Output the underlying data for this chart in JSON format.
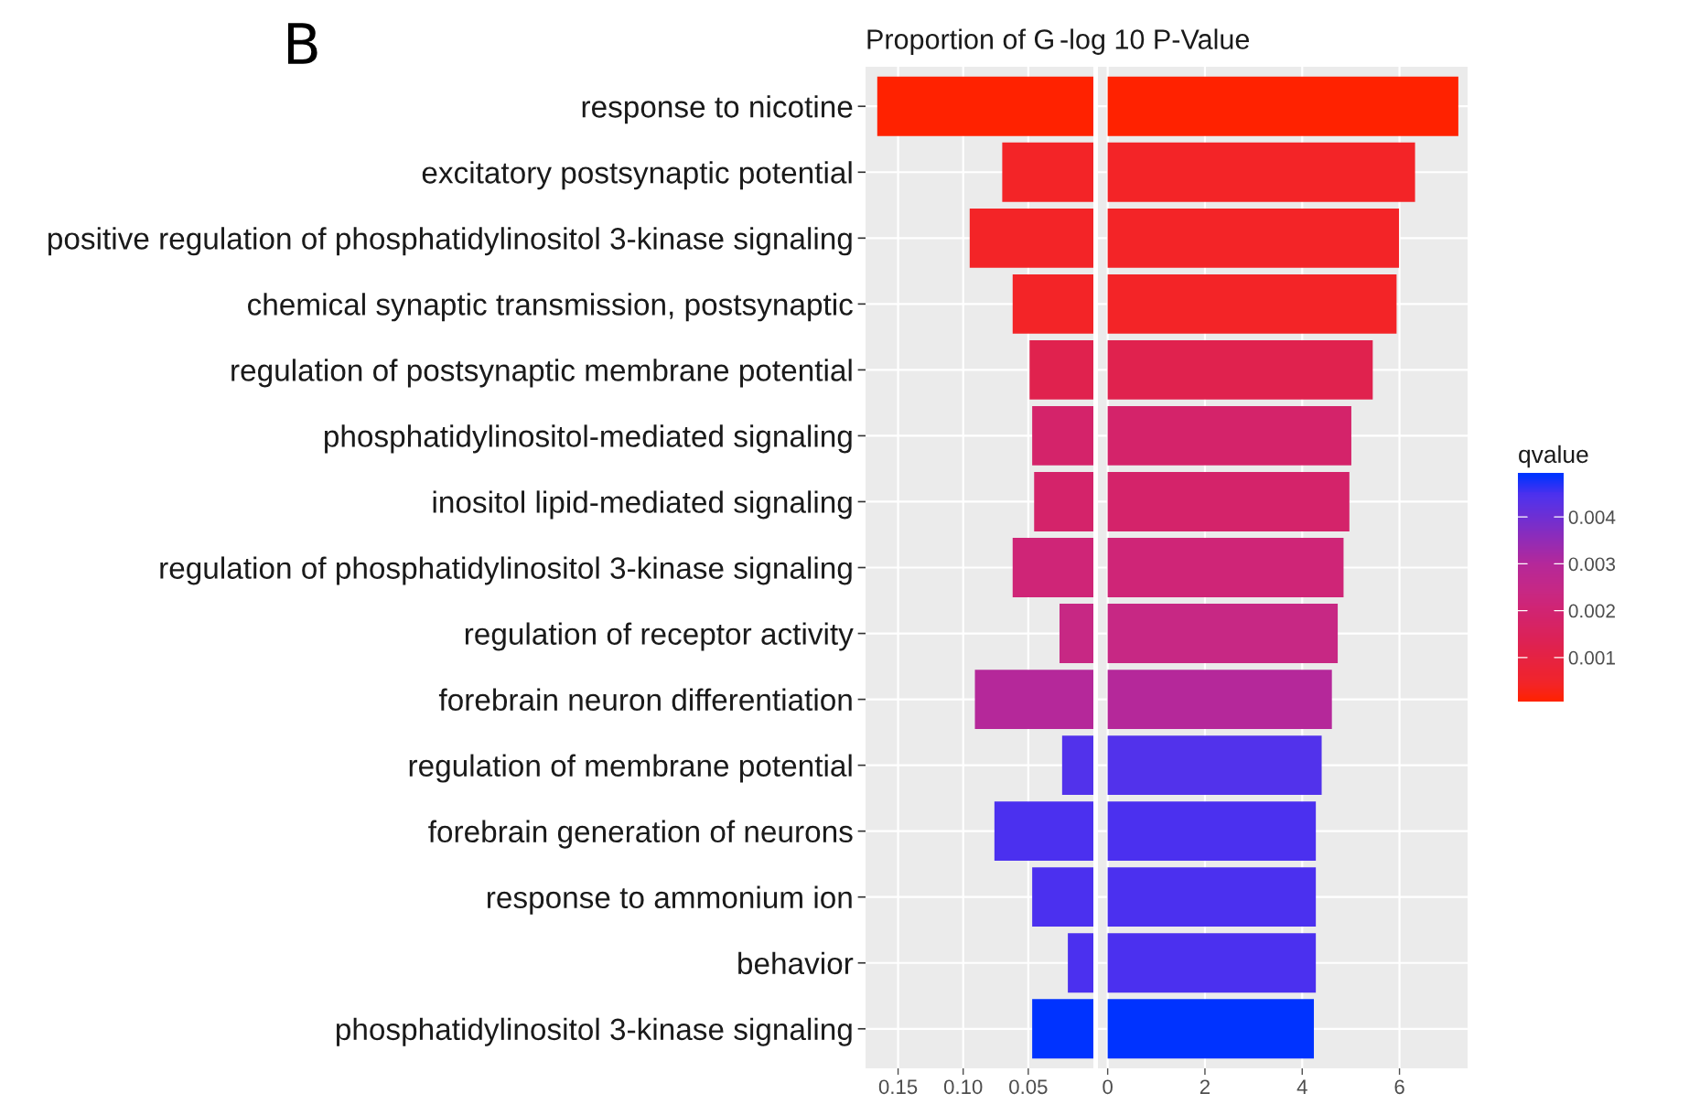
{
  "chart_data": [
    {
      "type": "bar",
      "orientation": "horizontal",
      "title": "Proportion of G",
      "annotations": [
        "B"
      ],
      "categories": [
        "response to nicotine",
        "excitatory postsynaptic potential",
        "positive regulation of phosphatidylinositol 3-kinase signaling",
        "chemical synaptic transmission, postsynaptic",
        "regulation of postsynaptic membrane potential",
        "phosphatidylinositol-mediated signaling",
        "inositol lipid-mediated signaling",
        "regulation of phosphatidylinositol 3-kinase signaling",
        "regulation of receptor activity",
        "forebrain neuron differentiation",
        "regulation of membrane potential",
        "forebrain generation of neurons",
        "response to ammonium ion",
        "behavior",
        "phosphatidylinositol 3-kinase signaling"
      ],
      "values": [
        0.166,
        0.07,
        0.095,
        0.062,
        0.049,
        0.047,
        0.0455,
        0.062,
        0.026,
        0.091,
        0.024,
        0.076,
        0.047,
        0.0196,
        0.047
      ],
      "colors": [
        "#ff2200",
        "#f32427",
        "#f32427",
        "#f32427",
        "#e0224e",
        "#d4236a",
        "#d4236a",
        "#cf2577",
        "#c72884",
        "#b5289a",
        "#5232eb",
        "#4b30ef",
        "#4b30ef",
        "#4b30ef",
        "#0033ff"
      ],
      "xlim": [
        0.175,
        0
      ],
      "xticks": [
        0.15,
        {
          "value": 0.1,
          "label": "0.10"
        },
        0.05
      ],
      "grid": true
    },
    {
      "type": "bar",
      "orientation": "horizontal",
      "title": "-log 10 P-Value",
      "tick_labels": "x",
      "categories": [
        null,
        null,
        null,
        null,
        null,
        null,
        null,
        null,
        null,
        null,
        null,
        null,
        null,
        null,
        null
      ],
      "values": [
        7.21,
        6.32,
        5.99,
        5.94,
        5.45,
        5.01,
        4.97,
        4.85,
        4.73,
        4.61,
        4.4,
        4.28,
        4.28,
        4.28,
        4.24
      ],
      "colors": [
        "#ff2200",
        "#f32427",
        "#f32427",
        "#f32427",
        "#e0224e",
        "#d4236a",
        "#d4236a",
        "#cf2577",
        "#c72884",
        "#b5289a",
        "#5232eb",
        "#4b30ef",
        "#4b30ef",
        "#4b30ef",
        "#0033ff"
      ],
      "cvalues": [
        6e-05,
        0.0004,
        0.0004,
        0.0004,
        0.0012,
        0.0018,
        0.0018,
        0.0021,
        0.0024,
        0.003,
        0.0044,
        0.0045,
        0.0045,
        0.0045,
        0.0049
      ],
      "xlim": [
        -0.2,
        7.4
      ],
      "xticks": [
        0,
        2,
        4,
        6
      ],
      "grid": true,
      "clabel": "qvalue",
      "clim": [
        6e-05,
        0.00494
      ],
      "cticks": [
        0.001,
        0.002,
        0.003,
        0.004
      ]
    }
  ]
}
